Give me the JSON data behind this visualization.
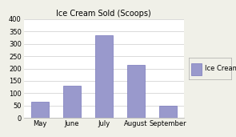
{
  "title": "Ice Cream Sold (Scoops)",
  "categories": [
    "May",
    "June",
    "July",
    "August",
    "September"
  ],
  "values": [
    65,
    130,
    335,
    215,
    50
  ],
  "bar_color": "#9999cc",
  "bar_edgecolor": "#7777bb",
  "ylim": [
    0,
    400
  ],
  "yticks": [
    0,
    50,
    100,
    150,
    200,
    250,
    300,
    350,
    400
  ],
  "legend_label": "Ice Cream",
  "background_color": "#f0f0e8",
  "plot_bg_color": "#ffffff",
  "title_fontsize": 7,
  "tick_fontsize": 6,
  "legend_fontsize": 6
}
